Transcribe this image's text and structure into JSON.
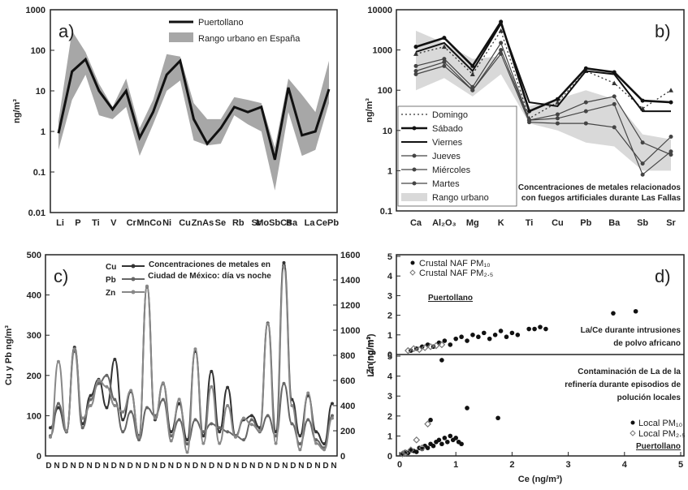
{
  "chart_data": [
    {
      "panel": "a)",
      "type": "line",
      "yscale": "log",
      "ylim": [
        0.01,
        1000
      ],
      "ylabel": "ng/m³",
      "y_ticks": [
        "0.01",
        "0.1",
        "1",
        "10",
        "100",
        "1000"
      ],
      "categories": [
        "Li",
        "P",
        "Ti",
        "V",
        "Cr",
        "Mn",
        "Co",
        "Ni",
        "Cu",
        "Zn",
        "As",
        "Se",
        "Rb",
        "Sr",
        "Mo",
        "Sb",
        "Cs",
        "Ba",
        "La",
        "Ce",
        "Pb"
      ],
      "tick_labels": [
        "Li",
        "P",
        "Ti",
        "V",
        "Cr",
        "MnCo",
        "Ni",
        "Cu",
        "ZnAs",
        "Se",
        "Rb",
        "Sr",
        "MoSbCs",
        "Ba",
        "La",
        "CePb"
      ],
      "series": [
        {
          "name": "Puertollano",
          "values": [
            0.9,
            30,
            60,
            10,
            3.5,
            10,
            0.7,
            3,
            25,
            55,
            2,
            0.5,
            1.2,
            4,
            3,
            4,
            0.2,
            12,
            0.8,
            1,
            11
          ]
        },
        {
          "name": "Rango urbano  en  España",
          "low": [
            0.35,
            6,
            25,
            2.5,
            2,
            4,
            0.25,
            1.5,
            10,
            18,
            0.6,
            0.45,
            0.5,
            2.5,
            1.5,
            1,
            0.035,
            3,
            0.25,
            0.35,
            5
          ],
          "high": [
            1.8,
            300,
            90,
            15,
            4,
            20,
            1.2,
            6,
            80,
            70,
            5,
            2,
            2,
            7,
            6,
            5,
            0.4,
            20,
            8,
            3,
            55
          ]
        }
      ],
      "legend": "top-right"
    },
    {
      "panel": "b)",
      "type": "line",
      "yscale": "log",
      "ylim": [
        0.1,
        10000
      ],
      "ylabel": "ng/m³",
      "y_ticks": [
        "0.1",
        "1",
        "10",
        "100",
        "1000",
        "10000"
      ],
      "categories": [
        "Ca",
        "Al₂O₃",
        "Mg",
        "K",
        "Ti",
        "Cu",
        "Pb",
        "Ba",
        "Sb",
        "Sr"
      ],
      "series": [
        {
          "name": "Domingo",
          "style": "dotted",
          "values": [
            800,
            1200,
            250,
            3000,
            20,
            50,
            300,
            150,
            35,
            100
          ]
        },
        {
          "name": "Sábado",
          "style": "bold",
          "values": [
            1200,
            2000,
            400,
            5000,
            30,
            60,
            350,
            280,
            55,
            50
          ]
        },
        {
          "name": "Viernes",
          "style": "solid",
          "values": [
            900,
            1500,
            300,
            4500,
            50,
            40,
            300,
            250,
            30,
            30
          ]
        },
        {
          "name": "Jueves",
          "style": "thin",
          "values": [
            400,
            600,
            120,
            1500,
            18,
            25,
            50,
            70,
            5,
            2.5
          ]
        },
        {
          "name": "Miércoles",
          "style": "thin",
          "values": [
            300,
            500,
            100,
            1000,
            18,
            20,
            30,
            45,
            0.8,
            3
          ]
        },
        {
          "name": "Martes",
          "style": "thin",
          "values": [
            250,
            400,
            100,
            800,
            16,
            15,
            15,
            12,
            1.5,
            7
          ]
        },
        {
          "name": "Rango urbano",
          "low": [
            100,
            200,
            70,
            250,
            15,
            10,
            5,
            4,
            1,
            1
          ],
          "high": [
            3000,
            1500,
            600,
            700,
            40,
            60,
            100,
            60,
            8,
            6
          ]
        }
      ],
      "annotation": [
        "Concentraciones de metales relacionados",
        "con fuegos artificiales durante Las Fallas"
      ],
      "legend": "bottom-left"
    },
    {
      "panel": "c)",
      "type": "line",
      "title": [
        "Concentraciones de metales en",
        "Ciudad de México: día vs noche"
      ],
      "ylabel_left": "Cu y Pb ng/m³",
      "ylabel_right": "Zn ng/m³",
      "ylim_left": [
        0,
        500
      ],
      "ylim_right": [
        0,
        1600
      ],
      "y_ticks_left": [
        "0",
        "100",
        "200",
        "300",
        "400",
        "500"
      ],
      "y_ticks_right": [
        "0",
        "200",
        "400",
        "600",
        "800",
        "1000",
        "1200",
        "1400",
        "1600"
      ],
      "x_tick_labels": [
        "D",
        "N",
        "D",
        "N",
        "D",
        "N",
        "D",
        "N",
        "D",
        "N",
        "D",
        "N",
        "D",
        "N",
        "D",
        "N",
        "D",
        "N",
        "D",
        "N",
        "D",
        "N",
        "D",
        "N",
        "D",
        "N",
        "D",
        "N",
        "D",
        "N",
        "D",
        "N",
        "D",
        "N",
        "D",
        "N"
      ],
      "series": [
        {
          "name": "Cu",
          "axis": "left",
          "values": [
            70,
            120,
            60,
            270,
            80,
            150,
            190,
            120,
            240,
            90,
            160,
            50,
            420,
            90,
            180,
            60,
            130,
            40,
            260,
            50,
            210,
            60,
            170,
            50,
            90,
            100,
            70,
            330,
            60,
            480,
            140,
            50,
            150,
            60,
            30,
            130
          ]
        },
        {
          "name": "Pb",
          "axis": "left",
          "values": [
            50,
            130,
            60,
            260,
            70,
            140,
            180,
            200,
            140,
            60,
            110,
            40,
            120,
            100,
            140,
            50,
            90,
            30,
            90,
            60,
            80,
            70,
            60,
            50,
            40,
            90,
            60,
            100,
            50,
            180,
            80,
            30,
            90,
            40,
            20,
            100
          ]
        },
        {
          "name": "Zn",
          "axis": "right",
          "values": [
            150,
            750,
            200,
            850,
            300,
            400,
            600,
            550,
            400,
            350,
            520,
            150,
            1350,
            300,
            580,
            120,
            450,
            30,
            850,
            100,
            550,
            100,
            400,
            150,
            300,
            250,
            200,
            1050,
            100,
            1500,
            400,
            50,
            500,
            100,
            50,
            300
          ]
        }
      ],
      "legend": "top-left"
    },
    {
      "panel": "d)",
      "type": "scatter",
      "xlabel": "Ce (ng/m³)",
      "ylabel": "La (ng/m³)",
      "xlim": [
        0,
        5
      ],
      "x_ticks": [
        "0",
        "1",
        "2",
        "3",
        "4",
        "5"
      ],
      "subplots": [
        {
          "y_ticks": [
            "0",
            "1",
            "2",
            "3",
            "4",
            "5"
          ],
          "ylim": [
            0,
            5
          ],
          "legend_label": "Puertollano",
          "annotation": [
            "La/Ce durante intrusiones",
            "de polvo africano"
          ],
          "series": [
            {
              "name": "Crustal NAF PM₁₀",
              "marker": "filled-circle",
              "x": [
                0.2,
                0.3,
                0.4,
                0.5,
                0.6,
                0.7,
                0.8,
                0.9,
                1.0,
                1.1,
                1.2,
                1.3,
                1.4,
                1.5,
                1.6,
                1.7,
                1.8,
                1.9,
                2.0,
                2.1,
                2.3,
                2.4,
                2.5,
                2.6,
                3.8,
                4.2
              ],
              "y": [
                0.2,
                0.3,
                0.4,
                0.5,
                0.4,
                0.6,
                0.7,
                0.5,
                0.8,
                0.9,
                0.7,
                1.0,
                0.9,
                1.1,
                0.8,
                1.0,
                1.2,
                0.9,
                1.1,
                1.0,
                1.3,
                1.3,
                1.4,
                1.3,
                2.1,
                2.2
              ]
            },
            {
              "name": "Crustal NAF PM₂.₅",
              "marker": "open-diamond",
              "x": [
                0.15,
                0.25,
                0.35,
                0.45,
                0.55,
                0.65,
                0.75
              ],
              "y": [
                0.2,
                0.3,
                0.25,
                0.35,
                0.4,
                0.45,
                0.5
              ]
            }
          ]
        },
        {
          "y_ticks": [
            "0",
            "1",
            "2",
            "3",
            "4",
            "5"
          ],
          "ylim": [
            0,
            5
          ],
          "legend_label": "Puertollano",
          "annotation": [
            "Contaminación de La de la",
            "refinería durante episodios de",
            "polución locales"
          ],
          "series": [
            {
              "name": "Local PM₁₀",
              "marker": "filled-circle",
              "x": [
                0.05,
                0.1,
                0.15,
                0.2,
                0.25,
                0.3,
                0.35,
                0.4,
                0.45,
                0.5,
                0.55,
                0.6,
                0.65,
                0.7,
                0.75,
                0.8,
                0.85,
                0.9,
                0.95,
                1.0,
                1.05,
                1.1,
                1.2,
                0.75,
                1.75,
                0.55
              ],
              "y": [
                0.1,
                0.2,
                0.15,
                0.3,
                0.25,
                0.2,
                0.4,
                0.35,
                0.5,
                0.4,
                0.6,
                0.5,
                0.7,
                0.8,
                0.6,
                0.9,
                0.7,
                1.0,
                0.8,
                0.9,
                0.7,
                0.6,
                2.4,
                4.8,
                1.9,
                1.8
              ]
            },
            {
              "name": "Local PM₂.₅",
              "marker": "open-diamond",
              "x": [
                0.05,
                0.1,
                0.2,
                0.3,
                0.4,
                0.5
              ],
              "y": [
                0.1,
                0.15,
                0.3,
                0.8,
                0.4,
                1.6
              ]
            }
          ]
        }
      ]
    }
  ]
}
